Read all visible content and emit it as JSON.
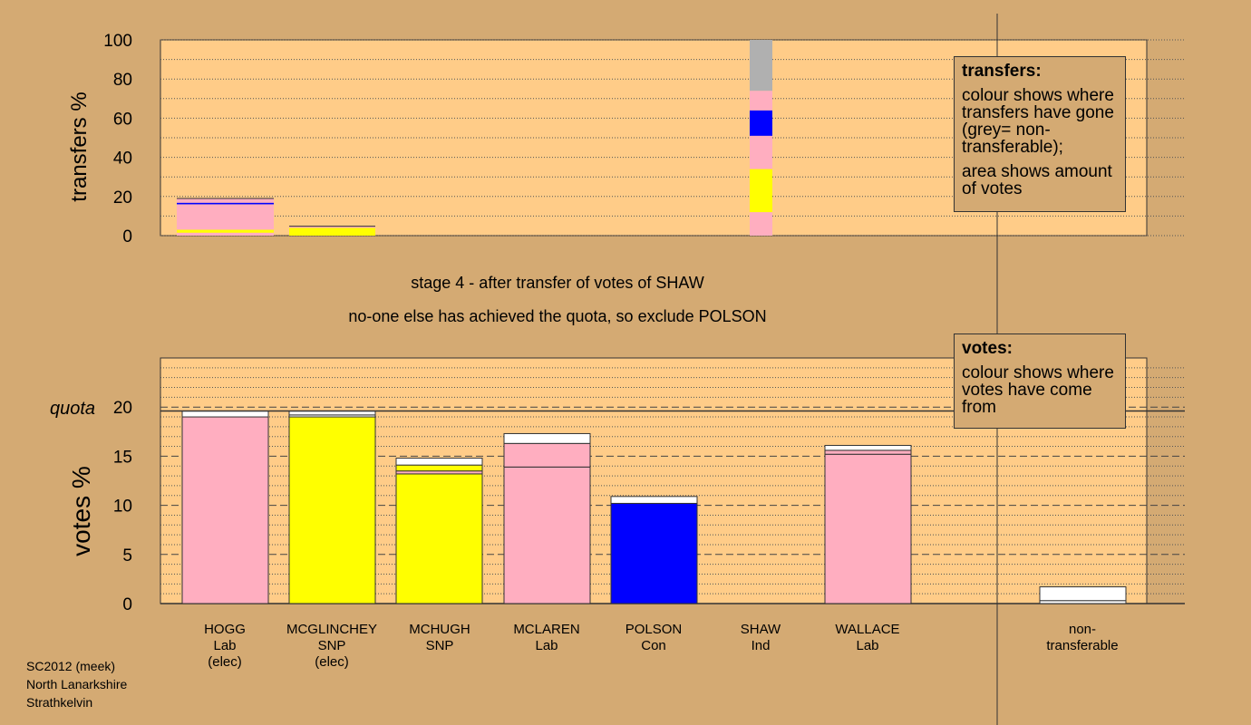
{
  "colors": {
    "background": "#d4aa73",
    "plot_bg": "#ffcc88",
    "Lab": "#ffaec0",
    "SNP": "#ffff00",
    "Con": "#0000ff",
    "non_transferable": "#b0b0b0",
    "white": "#ffffff"
  },
  "stage_title": "stage 4 - after transfer of votes of SHAW",
  "stage_subtitle": "no-one else has achieved the quota, so exclude POLSON",
  "footer": {
    "line1": "SC2012 (meek)",
    "line2": "North Lanarkshire",
    "line3": "Strathkelvin"
  },
  "legend_transfers": {
    "title": "transfers:",
    "p1": "colour shows where transfers have gone (grey= non-transferable);",
    "p2": "area shows amount of votes"
  },
  "legend_votes": {
    "title": "votes:",
    "p1": "colour shows where votes have come from"
  },
  "candidates": [
    {
      "name": "HOGG",
      "party": "Lab",
      "status": "(elec)"
    },
    {
      "name": "MCGLINCHEY",
      "party": "SNP",
      "status": "(elec)"
    },
    {
      "name": "MCHUGH",
      "party": "SNP",
      "status": ""
    },
    {
      "name": "MCLAREN",
      "party": "Lab",
      "status": ""
    },
    {
      "name": "POLSON",
      "party": "Con",
      "status": ""
    },
    {
      "name": "SHAW",
      "party": "Ind",
      "status": ""
    },
    {
      "name": "WALLACE",
      "party": "Lab",
      "status": ""
    }
  ],
  "nontransferable_label": "non- transferable",
  "chart_data": [
    {
      "type": "bar",
      "ylabel": "transfers %",
      "ylim": [
        0,
        100
      ],
      "yticks": [
        0,
        20,
        40,
        60,
        80,
        100
      ],
      "bars": [
        {
          "candidate": "HOGG",
          "width_share": 0.18,
          "segments": [
            {
              "color": "Lab",
              "value": 1.5
            },
            {
              "color": "SNP",
              "value": 1.5
            },
            {
              "color": "Lab",
              "value": 13
            },
            {
              "color": "Con",
              "value": 0.8
            },
            {
              "color": "Lab",
              "value": 2.2
            }
          ]
        },
        {
          "candidate": "MCGLINCHEY",
          "width_share": 0.16,
          "segments": [
            {
              "color": "SNP",
              "value": 4
            },
            {
              "color": "Lab",
              "value": 0.8
            }
          ]
        },
        {
          "candidate": "SHAW",
          "width_share": 0.04,
          "segments": [
            {
              "color": "Lab",
              "value": 12
            },
            {
              "color": "SNP",
              "value": 22
            },
            {
              "color": "Lab",
              "value": 17
            },
            {
              "color": "Con",
              "value": 13
            },
            {
              "color": "Lab",
              "value": 10
            },
            {
              "color": "non_transferable",
              "value": 26
            }
          ]
        }
      ]
    },
    {
      "type": "bar",
      "ylabel": "votes %",
      "quota_label": "quota",
      "quota": 19.6,
      "ylim": [
        0,
        25
      ],
      "yticks": [
        0,
        5,
        10,
        15,
        20
      ],
      "series": [
        {
          "candidate": "HOGG",
          "segments": [
            {
              "color": "Lab",
              "value": 19.0
            },
            {
              "color": "white",
              "value": 0.6
            }
          ]
        },
        {
          "candidate": "MCGLINCHEY",
          "segments": [
            {
              "color": "SNP",
              "value": 19.0
            },
            {
              "color": "white",
              "value": 0.2
            },
            {
              "color": "white",
              "value": 0.4
            }
          ]
        },
        {
          "candidate": "MCHUGH",
          "segments": [
            {
              "color": "SNP",
              "value": 13.2
            },
            {
              "color": "Lab",
              "value": 0.3
            },
            {
              "color": "SNP",
              "value": 0.6
            },
            {
              "color": "white",
              "value": 0.7
            }
          ]
        },
        {
          "candidate": "MCLAREN",
          "segments": [
            {
              "color": "Lab",
              "value": 13.9
            },
            {
              "color": "Lab",
              "value": 2.4
            },
            {
              "color": "white",
              "value": 1.0
            }
          ]
        },
        {
          "candidate": "POLSON",
          "segments": [
            {
              "color": "Con",
              "value": 10.2
            },
            {
              "color": "white",
              "value": 0.7
            }
          ]
        },
        {
          "candidate": "SHAW",
          "segments": []
        },
        {
          "candidate": "WALLACE",
          "segments": [
            {
              "color": "Lab",
              "value": 15.2
            },
            {
              "color": "Lab",
              "value": 0.4
            },
            {
              "color": "white",
              "value": 0.5
            }
          ]
        },
        {
          "candidate": "non-transferable",
          "segments": [
            {
              "color": "white",
              "value": 0.3
            },
            {
              "color": "white",
              "value": 1.4
            }
          ]
        }
      ]
    }
  ]
}
